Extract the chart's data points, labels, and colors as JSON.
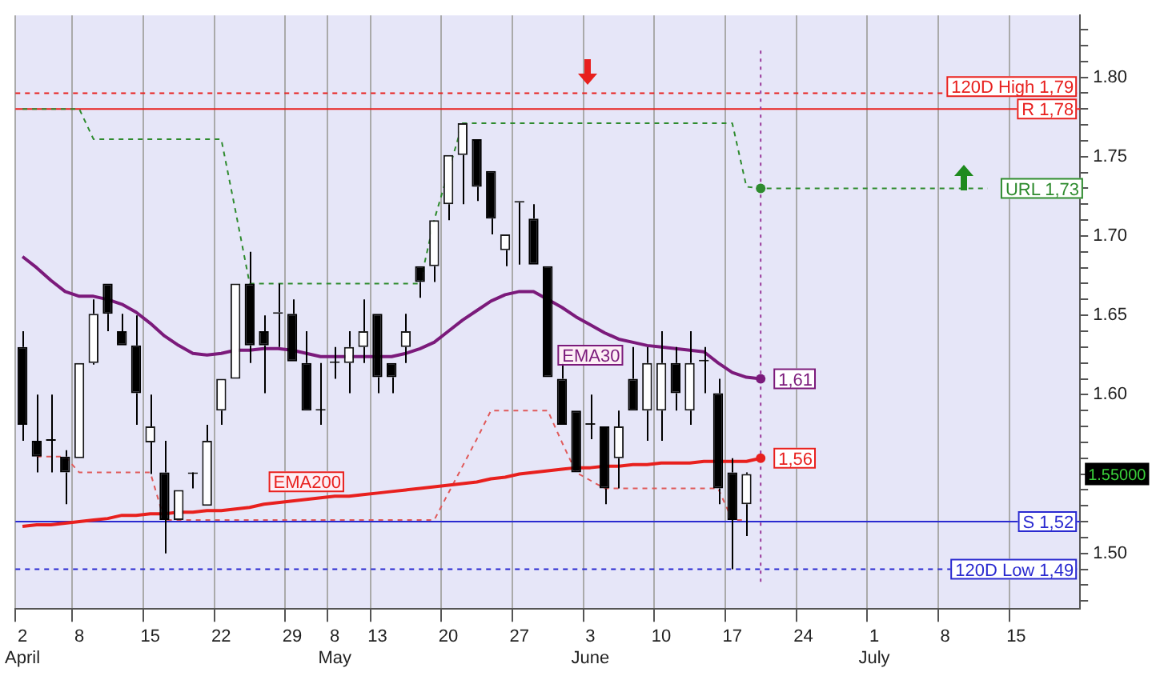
{
  "chart_data": {
    "type": "candlestick",
    "categories": [
      "2\nApril",
      null,
      null,
      null,
      "8",
      null,
      null,
      null,
      null,
      "15",
      null,
      null,
      null,
      null,
      "22",
      null,
      null,
      null,
      null,
      "29",
      null,
      null,
      "8\nMay",
      null,
      null,
      "13",
      null,
      null,
      null,
      null,
      "20",
      null,
      null,
      null,
      null,
      "27",
      null,
      null,
      null,
      null,
      "3\nJune",
      null,
      null,
      null,
      null,
      "10",
      null,
      null,
      null,
      null,
      "17",
      null,
      null,
      null,
      null,
      "24",
      null,
      null,
      null,
      null,
      "1\nJuly",
      null,
      null,
      null,
      null,
      "8",
      null,
      null,
      null,
      null,
      "15",
      null,
      null,
      null,
      null
    ],
    "ohlc": [
      [
        1.63,
        1.64,
        1.571,
        1.581
      ],
      [
        1.571,
        1.6,
        1.551,
        1.561
      ],
      [
        1.572,
        1.6,
        1.551,
        1.571
      ],
      [
        1.561,
        1.565,
        1.531,
        1.551
      ],
      [
        1.56,
        1.62,
        1.56,
        1.62
      ],
      [
        1.62,
        1.66,
        1.619,
        1.651
      ],
      [
        1.67,
        1.67,
        1.64,
        1.651
      ],
      [
        1.64,
        1.651,
        1.631,
        1.631
      ],
      [
        1.631,
        1.65,
        1.581,
        1.601
      ],
      [
        1.57,
        1.6,
        1.55,
        1.58
      ],
      [
        1.551,
        1.571,
        1.5,
        1.521
      ],
      [
        1.521,
        1.54,
        1.521,
        1.54
      ],
      [
        1.55,
        1.551,
        1.541,
        1.55
      ],
      [
        1.53,
        1.581,
        1.53,
        1.571
      ],
      [
        1.59,
        1.61,
        1.581,
        1.61
      ],
      [
        1.61,
        1.67,
        1.61,
        1.67
      ],
      [
        1.67,
        1.69,
        1.62,
        1.631
      ],
      [
        1.64,
        1.65,
        1.601,
        1.631
      ],
      [
        1.651,
        1.67,
        1.63,
        1.652
      ],
      [
        1.651,
        1.66,
        1.621,
        1.621
      ],
      [
        1.62,
        1.64,
        1.59,
        1.59
      ],
      [
        1.59,
        1.62,
        1.581,
        1.59
      ],
      [
        1.62,
        1.63,
        1.61,
        1.62
      ],
      [
        1.62,
        1.64,
        1.601,
        1.63
      ],
      [
        1.63,
        1.66,
        1.62,
        1.64
      ],
      [
        1.651,
        1.651,
        1.601,
        1.611
      ],
      [
        1.62,
        1.62,
        1.601,
        1.611
      ],
      [
        1.63,
        1.651,
        1.62,
        1.64
      ],
      [
        1.681,
        1.681,
        1.661,
        1.671
      ],
      [
        1.681,
        1.71,
        1.671,
        1.71
      ],
      [
        1.72,
        1.751,
        1.71,
        1.751
      ],
      [
        1.751,
        1.771,
        1.72,
        1.771
      ],
      [
        1.761,
        1.761,
        1.722,
        1.731
      ],
      [
        1.741,
        1.741,
        1.701,
        1.711
      ],
      [
        1.691,
        1.701,
        1.681,
        1.701
      ],
      [
        1.721,
        1.721,
        1.682,
        1.721
      ],
      [
        1.711,
        1.72,
        1.682,
        1.682
      ],
      [
        1.681,
        1.681,
        1.611,
        1.611
      ],
      [
        1.61,
        1.62,
        1.581,
        1.581
      ],
      [
        1.59,
        1.59,
        1.551,
        1.551
      ],
      [
        1.581,
        1.6,
        1.572,
        1.581
      ],
      [
        1.58,
        1.58,
        1.531,
        1.541
      ],
      [
        1.56,
        1.59,
        1.541,
        1.58
      ],
      [
        1.61,
        1.63,
        1.59,
        1.59
      ],
      [
        1.59,
        1.63,
        1.571,
        1.62
      ],
      [
        1.59,
        1.64,
        1.571,
        1.62
      ],
      [
        1.62,
        1.63,
        1.59,
        1.601
      ],
      [
        1.59,
        1.64,
        1.581,
        1.62
      ],
      [
        1.621,
        1.63,
        1.601,
        1.621
      ],
      [
        1.601,
        1.61,
        1.531,
        1.541
      ],
      [
        1.551,
        1.56,
        1.49,
        1.521
      ],
      [
        1.531,
        1.551,
        1.511,
        1.55
      ],
      null,
      null,
      null,
      null,
      null,
      null,
      null,
      null,
      null,
      null,
      null,
      null,
      null,
      null,
      null,
      null,
      null,
      null,
      null,
      null,
      null,
      null,
      null
    ],
    "series": [
      {
        "name": "EMA30",
        "type": "line",
        "color": "#7b1a7b",
        "values": [
          1.687,
          1.68,
          1.672,
          1.665,
          1.662,
          1.662,
          1.66,
          1.657,
          1.652,
          1.645,
          1.637,
          1.631,
          1.626,
          1.625,
          1.626,
          1.628,
          1.628,
          1.629,
          1.629,
          1.628,
          1.626,
          1.624,
          1.624,
          1.624,
          1.624,
          1.624,
          1.624,
          1.626,
          1.629,
          1.633,
          1.64,
          1.647,
          1.653,
          1.659,
          1.663,
          1.665,
          1.665,
          1.66,
          1.655,
          1.649,
          1.644,
          1.639,
          1.635,
          1.633,
          1.631,
          1.63,
          1.629,
          1.628,
          1.627,
          1.62,
          1.614,
          1.611,
          1.61,
          null,
          null,
          null,
          null,
          null,
          null,
          null,
          null,
          null,
          null,
          null,
          null,
          null,
          null,
          null,
          null,
          null,
          null,
          null,
          null,
          null,
          null
        ],
        "value_labels": [
          null,
          null,
          null,
          null,
          null,
          null,
          null,
          null,
          null,
          null,
          null,
          null,
          null,
          null,
          null,
          null,
          null,
          null,
          null,
          null,
          null,
          null,
          null,
          null,
          null,
          null,
          null,
          null,
          null,
          null,
          null,
          null,
          null,
          null,
          null,
          null,
          null,
          null,
          null,
          null,
          null,
          null,
          null,
          null,
          null,
          null,
          null,
          null,
          null,
          null,
          null,
          null,
          "1,61",
          null,
          null,
          null,
          null,
          null,
          null,
          null,
          null,
          null,
          null,
          null,
          null,
          null,
          null,
          null,
          null,
          null,
          null,
          null,
          null,
          null,
          null
        ]
      },
      {
        "name": "EMA200",
        "type": "line",
        "color": "#e8201e",
        "values": [
          1.517,
          1.518,
          1.518,
          1.519,
          1.52,
          1.521,
          1.522,
          1.524,
          1.524,
          1.525,
          1.525,
          1.526,
          1.526,
          1.527,
          1.527,
          1.528,
          1.529,
          1.531,
          1.532,
          1.533,
          1.534,
          1.535,
          1.536,
          1.536,
          1.537,
          1.538,
          1.539,
          1.54,
          1.541,
          1.542,
          1.543,
          1.544,
          1.545,
          1.547,
          1.548,
          1.55,
          1.551,
          1.552,
          1.553,
          1.554,
          1.554,
          1.555,
          1.555,
          1.556,
          1.556,
          1.557,
          1.557,
          1.557,
          1.558,
          1.558,
          1.558,
          1.558,
          1.56,
          null,
          null,
          null,
          null,
          null,
          null,
          null,
          null,
          null,
          null,
          null,
          null,
          null,
          null,
          null,
          null,
          null,
          null,
          null,
          null,
          null,
          null
        ],
        "value_labels": [
          null,
          null,
          null,
          null,
          null,
          null,
          null,
          null,
          null,
          null,
          null,
          null,
          null,
          null,
          null,
          null,
          null,
          null,
          null,
          null,
          null,
          null,
          null,
          null,
          null,
          null,
          null,
          null,
          null,
          null,
          null,
          null,
          null,
          null,
          null,
          null,
          null,
          null,
          null,
          null,
          null,
          null,
          null,
          null,
          null,
          null,
          null,
          null,
          null,
          null,
          null,
          null,
          "1,56",
          null,
          null,
          null,
          null,
          null,
          null,
          null,
          null,
          null,
          null,
          null,
          null,
          null,
          null,
          null,
          null,
          null,
          null,
          null,
          null,
          null,
          null
        ]
      },
      {
        "type": "line",
        "color": "#2e8b2e",
        "line_style": "dashed",
        "values": [
          1.78,
          1.78,
          1.78,
          1.78,
          1.78,
          1.761,
          1.761,
          1.761,
          1.761,
          1.761,
          1.761,
          1.761,
          1.761,
          1.761,
          1.761,
          1.716,
          1.67,
          1.67,
          1.67,
          1.67,
          1.67,
          1.67,
          1.67,
          1.67,
          1.67,
          1.67,
          1.67,
          1.67,
          1.67,
          1.71,
          null,
          1.771,
          1.771,
          1.771,
          1.771,
          1.771,
          1.771,
          1.771,
          1.771,
          1.771,
          1.771,
          1.771,
          1.771,
          1.771,
          1.771,
          1.771,
          1.771,
          1.771,
          1.771,
          1.771,
          1.771,
          1.731,
          1.73,
          1.73,
          1.73,
          1.73,
          1.73,
          1.73,
          1.73,
          1.73,
          1.73,
          1.73,
          1.73,
          1.73,
          1.73,
          1.73,
          1.73,
          1.73,
          1.73,
          null,
          null,
          null,
          null,
          null,
          null
        ],
        "value_labels": [
          null,
          null,
          null,
          null,
          null,
          null,
          null,
          null,
          null,
          null,
          null,
          null,
          null,
          null,
          null,
          null,
          null,
          null,
          null,
          null,
          null,
          null,
          null,
          null,
          null,
          null,
          null,
          null,
          null,
          null,
          null,
          null,
          null,
          null,
          null,
          null,
          null,
          null,
          null,
          null,
          null,
          null,
          null,
          null,
          null,
          null,
          null,
          null,
          null,
          null,
          null,
          null,
          null,
          null,
          null,
          null,
          null,
          null,
          null,
          null,
          null,
          null,
          null,
          null,
          null,
          null,
          null,
          null,
          "URL 1,73",
          null,
          null,
          null,
          null,
          null,
          null
        ]
      },
      {
        "type": "line",
        "color": "#e05a5a",
        "line_style": "dashed",
        "values": [
          null,
          1.561,
          1.561,
          1.561,
          1.551,
          1.551,
          1.551,
          1.551,
          1.551,
          1.551,
          1.521,
          1.521,
          1.521,
          1.521,
          1.521,
          1.521,
          1.521,
          1.521,
          1.521,
          1.521,
          1.521,
          1.521,
          1.521,
          1.521,
          1.521,
          1.521,
          1.521,
          1.521,
          1.521,
          1.521,
          1.538,
          1.555,
          1.572,
          1.59,
          1.59,
          1.59,
          1.59,
          1.59,
          1.57,
          1.551,
          1.546,
          1.541,
          1.541,
          1.541,
          1.541,
          1.541,
          1.541,
          1.541,
          1.541,
          1.541,
          1.521,
          1.521,
          null,
          null,
          null,
          null,
          null,
          null,
          null,
          null,
          null,
          null,
          null,
          null,
          null,
          null,
          null,
          null,
          null,
          null,
          null,
          null,
          null,
          null,
          null
        ]
      }
    ],
    "ref_lines": [
      {
        "axis": "y",
        "value": 1.79,
        "label": "120D High 1,79",
        "color": "#e8201e",
        "line_style": "dashed"
      },
      {
        "axis": "y",
        "value": 1.78,
        "label": "R 1,78",
        "color": "#e8201e",
        "line_style": "solid"
      },
      {
        "axis": "y",
        "value": 1.52,
        "label": "S 1,52",
        "color": "#2a2ad0",
        "line_style": "solid"
      },
      {
        "axis": "y",
        "value": 1.49,
        "label": "120D Low 1,49",
        "color": "#2a2ad0",
        "line_style": "dashed"
      }
    ],
    "annotations": [
      "1.55000"
    ],
    "ylim": [
      1.465,
      1.839
    ],
    "yticks": [
      {
        "value": 1.47,
        "label": null
      },
      {
        "value": 1.48,
        "label": null
      },
      {
        "value": 1.49,
        "label": null
      },
      {
        "value": 1.5,
        "label": "1.50"
      },
      {
        "value": 1.51,
        "label": null
      },
      {
        "value": 1.52,
        "label": null
      },
      {
        "value": 1.53,
        "label": null
      },
      {
        "value": 1.54,
        "label": null
      },
      {
        "value": 1.55,
        "label": null
      },
      {
        "value": 1.56,
        "label": null
      },
      {
        "value": 1.57,
        "label": null
      },
      {
        "value": 1.58,
        "label": null
      },
      {
        "value": 1.59,
        "label": null
      },
      {
        "value": 1.6,
        "label": "1.60"
      },
      {
        "value": 1.61,
        "label": null
      },
      {
        "value": 1.62,
        "label": null
      },
      {
        "value": 1.63,
        "label": null
      },
      {
        "value": 1.64,
        "label": null
      },
      {
        "value": 1.65,
        "label": "1.65"
      },
      {
        "value": 1.66,
        "label": null
      },
      {
        "value": 1.67,
        "label": null
      },
      {
        "value": 1.68,
        "label": null
      },
      {
        "value": 1.69,
        "label": null
      },
      {
        "value": 1.7,
        "label": "1.70"
      },
      {
        "value": 1.71,
        "label": null
      },
      {
        "value": 1.72,
        "label": null
      },
      {
        "value": 1.73,
        "label": null
      },
      {
        "value": 1.74,
        "label": null
      },
      {
        "value": 1.75,
        "label": "1.75"
      },
      {
        "value": 1.76,
        "label": null
      },
      {
        "value": 1.77,
        "label": null
      },
      {
        "value": 1.78,
        "label": null
      },
      {
        "value": 1.79,
        "label": null
      },
      {
        "value": 1.8,
        "label": "1.80"
      },
      {
        "value": 1.81,
        "label": null
      },
      {
        "value": 1.82,
        "label": null
      },
      {
        "value": 1.83,
        "label": null
      }
    ],
    "grid": "x"
  }
}
